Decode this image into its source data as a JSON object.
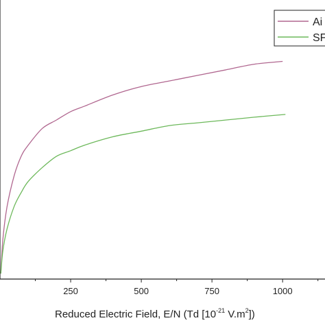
{
  "chart_data": {
    "type": "line",
    "xlabel": "Reduced Electric Field, E/N (Td [10",
    "xlabel_sup1": "-21",
    "xlabel_mid": " V.m",
    "xlabel_sup2": "2",
    "xlabel_end": "])",
    "xlim": [
      0,
      1150
    ],
    "x_ticks": [
      "250",
      "500",
      "750",
      "1000"
    ],
    "x_tick_values": [
      250,
      500,
      750,
      1000
    ],
    "ylim": [
      0,
      1
    ],
    "legend_position": "top-right",
    "series": [
      {
        "name": "Ai",
        "color": "#b0668f",
        "x": [
          3,
          10,
          25,
          50,
          75,
          100,
          150,
          200,
          250,
          300,
          400,
          500,
          600,
          700,
          800,
          900,
          1000
        ],
        "y": [
          0.02,
          0.14,
          0.26,
          0.37,
          0.44,
          0.48,
          0.54,
          0.57,
          0.6,
          0.62,
          0.66,
          0.69,
          0.71,
          0.73,
          0.75,
          0.77,
          0.78
        ]
      },
      {
        "name": "SF",
        "color": "#6cb85a",
        "x": [
          3,
          10,
          25,
          50,
          75,
          100,
          150,
          200,
          250,
          300,
          400,
          500,
          600,
          700,
          800,
          900,
          1010
        ],
        "y": [
          0.02,
          0.1,
          0.18,
          0.26,
          0.31,
          0.35,
          0.4,
          0.44,
          0.46,
          0.48,
          0.51,
          0.53,
          0.55,
          0.56,
          0.57,
          0.58,
          0.59
        ]
      }
    ]
  }
}
